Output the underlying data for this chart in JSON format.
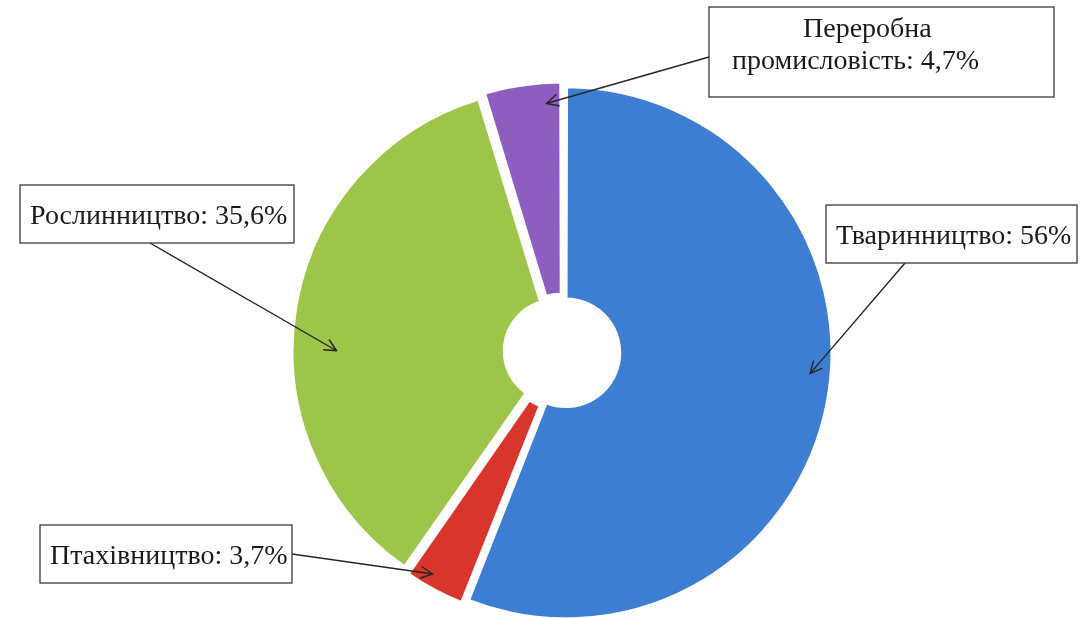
{
  "chart_data": {
    "type": "donut",
    "categories": [
      "Тваринництво",
      "Птахівництво",
      "Рослинництво",
      "Переробна промисловість"
    ],
    "values": [
      56,
      3.7,
      35.6,
      4.7
    ],
    "colors": [
      "#3d7ed3",
      "#d8362d",
      "#9cc549",
      "#8d5dbf"
    ],
    "value_labels": [
      "56%",
      "3,7%",
      "35,6%",
      "4,7%"
    ]
  }
}
